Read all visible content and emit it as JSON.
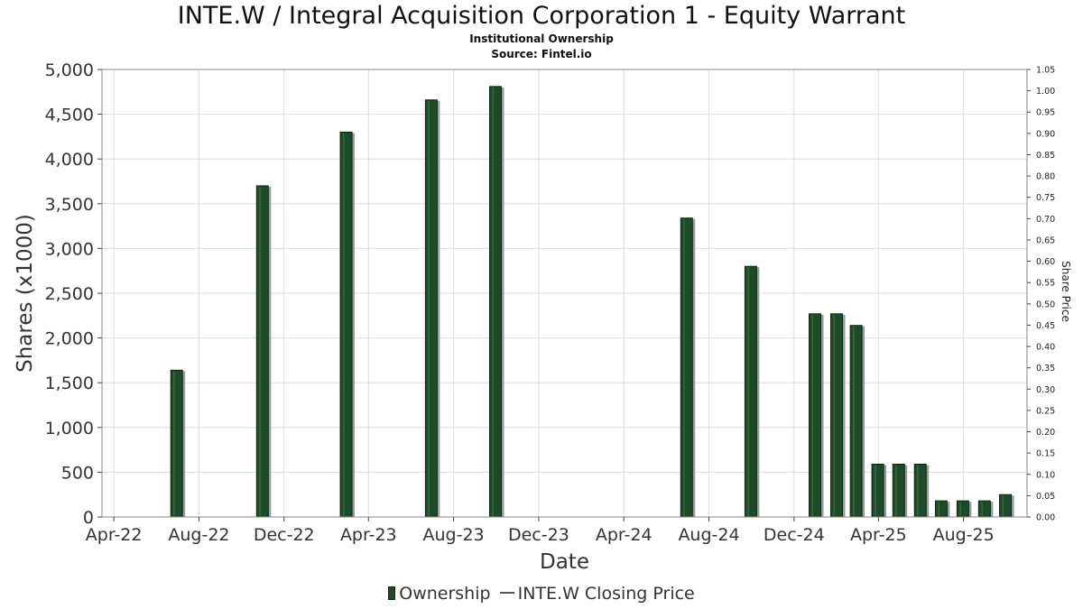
{
  "header": {
    "title": "INTE.W / Integral Acquisition Corporation 1 - Equity Warrant",
    "subtitle": "Institutional Ownership",
    "source": "Source: Fintel.io"
  },
  "legend": {
    "ownership": "Ownership",
    "price": "INTE.W Closing Price"
  },
  "colors": {
    "bar_fill": "#1f4a2a",
    "bar_shadow": "#9a9a9a",
    "grid": "#dddddd",
    "axis": "#888888"
  },
  "chart_data": {
    "type": "bar",
    "title": "INTE.W / Integral Acquisition Corporation 1 - Equity Warrant",
    "xlabel": "Date",
    "ylabel": "Shares (x1000)",
    "y2label": "Share Price",
    "ylim": [
      0,
      5000
    ],
    "y2lim": [
      0,
      1.05
    ],
    "xlim": [
      "2022-03-15",
      "2025-10-31"
    ],
    "x_ticks": [
      {
        "date": "2022-04-01",
        "label": "Apr-22"
      },
      {
        "date": "2022-08-01",
        "label": "Aug-22"
      },
      {
        "date": "2022-12-01",
        "label": "Dec-22"
      },
      {
        "date": "2023-04-01",
        "label": "Apr-23"
      },
      {
        "date": "2023-08-01",
        "label": "Aug-23"
      },
      {
        "date": "2023-12-01",
        "label": "Dec-23"
      },
      {
        "date": "2024-04-01",
        "label": "Apr-24"
      },
      {
        "date": "2024-08-01",
        "label": "Aug-24"
      },
      {
        "date": "2024-12-01",
        "label": "Dec-24"
      },
      {
        "date": "2025-04-01",
        "label": "Apr-25"
      },
      {
        "date": "2025-08-01",
        "label": "Aug-25"
      }
    ],
    "y_ticks": [
      {
        "value": 0,
        "label": "0"
      },
      {
        "value": 500,
        "label": "500"
      },
      {
        "value": 1000,
        "label": "1,000"
      },
      {
        "value": 1500,
        "label": "1,500"
      },
      {
        "value": 2000,
        "label": "2,000"
      },
      {
        "value": 2500,
        "label": "2,500"
      },
      {
        "value": 3000,
        "label": "3,000"
      },
      {
        "value": 3500,
        "label": "3,500"
      },
      {
        "value": 4000,
        "label": "4,000"
      },
      {
        "value": 4500,
        "label": "4,500"
      },
      {
        "value": 5000,
        "label": "5,000"
      }
    ],
    "y2_ticks": [
      {
        "value": 0.0,
        "label": "0.00"
      },
      {
        "value": 0.05,
        "label": "0.05"
      },
      {
        "value": 0.1,
        "label": "0.10"
      },
      {
        "value": 0.15,
        "label": "0.15"
      },
      {
        "value": 0.2,
        "label": "0.20"
      },
      {
        "value": 0.25,
        "label": "0.25"
      },
      {
        "value": 0.3,
        "label": "0.30"
      },
      {
        "value": 0.35,
        "label": "0.35"
      },
      {
        "value": 0.4,
        "label": "0.40"
      },
      {
        "value": 0.45,
        "label": "0.45"
      },
      {
        "value": 0.5,
        "label": "0.50"
      },
      {
        "value": 0.55,
        "label": "0.55"
      },
      {
        "value": 0.6,
        "label": "0.60"
      },
      {
        "value": 0.65,
        "label": "0.65"
      },
      {
        "value": 0.7,
        "label": "0.70"
      },
      {
        "value": 0.75,
        "label": "0.75"
      },
      {
        "value": 0.8,
        "label": "0.80"
      },
      {
        "value": 0.85,
        "label": "0.85"
      },
      {
        "value": 0.9,
        "label": "0.90"
      },
      {
        "value": 0.95,
        "label": "0.95"
      },
      {
        "value": 1.0,
        "label": "1.00"
      },
      {
        "value": 1.05,
        "label": "1.05"
      }
    ],
    "series": [
      {
        "name": "Ownership",
        "points": [
          {
            "date": "2022-06-30",
            "value": 1640
          },
          {
            "date": "2022-10-31",
            "value": 3700
          },
          {
            "date": "2023-02-28",
            "value": 4300
          },
          {
            "date": "2023-06-30",
            "value": 4660
          },
          {
            "date": "2023-09-30",
            "value": 4810
          },
          {
            "date": "2024-06-30",
            "value": 3340
          },
          {
            "date": "2024-09-30",
            "value": 2800
          },
          {
            "date": "2024-12-31",
            "value": 2270
          },
          {
            "date": "2025-01-31",
            "value": 2270
          },
          {
            "date": "2025-02-28",
            "value": 2140
          },
          {
            "date": "2025-03-31",
            "value": 590
          },
          {
            "date": "2025-04-30",
            "value": 590
          },
          {
            "date": "2025-05-31",
            "value": 590
          },
          {
            "date": "2025-06-30",
            "value": 180
          },
          {
            "date": "2025-07-31",
            "value": 180
          },
          {
            "date": "2025-08-31",
            "value": 180
          },
          {
            "date": "2025-09-30",
            "value": 250
          }
        ]
      }
    ],
    "grid": true,
    "legend_position": "bottom-center"
  }
}
